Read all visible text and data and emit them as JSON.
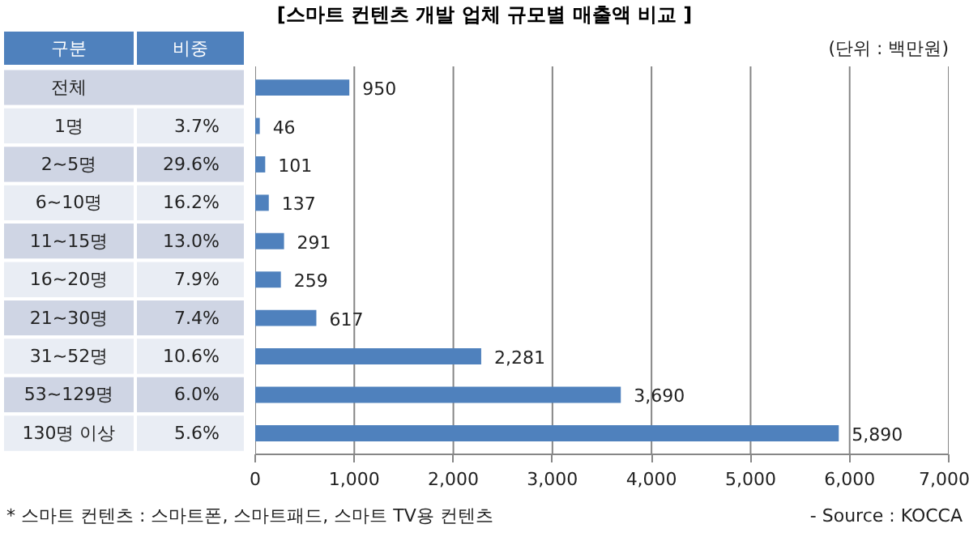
{
  "chart_data": {
    "type": "bar",
    "orientation": "horizontal",
    "title": "[스마트 컨텐츠 개발 업체 규모별 매출액 비교 ]",
    "categories": [
      "전체",
      "1명",
      "2~5명",
      "6~10명",
      "11~15명",
      "16~20명",
      "21~30명",
      "31~52명",
      "53~129명",
      "130명 이상"
    ],
    "values": [
      950,
      46,
      101,
      137,
      291,
      259,
      617,
      2281,
      3690,
      5890
    ],
    "color": "#4f81bd",
    "xlim": [
      0,
      7000
    ],
    "xticks": [
      {
        "value": 0,
        "label": "0"
      },
      {
        "value": 1000,
        "label": "1,000"
      },
      {
        "value": 2000,
        "label": "2,000"
      },
      {
        "value": 3000,
        "label": "3,000"
      },
      {
        "value": 4000,
        "label": "4,000"
      },
      {
        "value": 5000,
        "label": "5,000"
      },
      {
        "value": 6000,
        "label": "6,000"
      },
      {
        "value": 7000,
        "label": "7,000"
      }
    ],
    "grid": "x",
    "value_labels": [
      "950",
      "46",
      "101",
      "137",
      "291",
      "259",
      "617",
      "2,281",
      "3,690",
      "5,890"
    ],
    "annotations": [
      "구분",
      "비중",
      "(단위 : 백만원)",
      "* 스마트 컨텐츠 : 스마트폰, 스마트패드, 스마트 TV용 컨텐츠",
      "- Source : KOCCA",
      "3.7%",
      "29.6%",
      "16.2%",
      "13.0%",
      "7.9%",
      "7.4%",
      "10.6%",
      "6.0%",
      "5.6%"
    ]
  }
}
